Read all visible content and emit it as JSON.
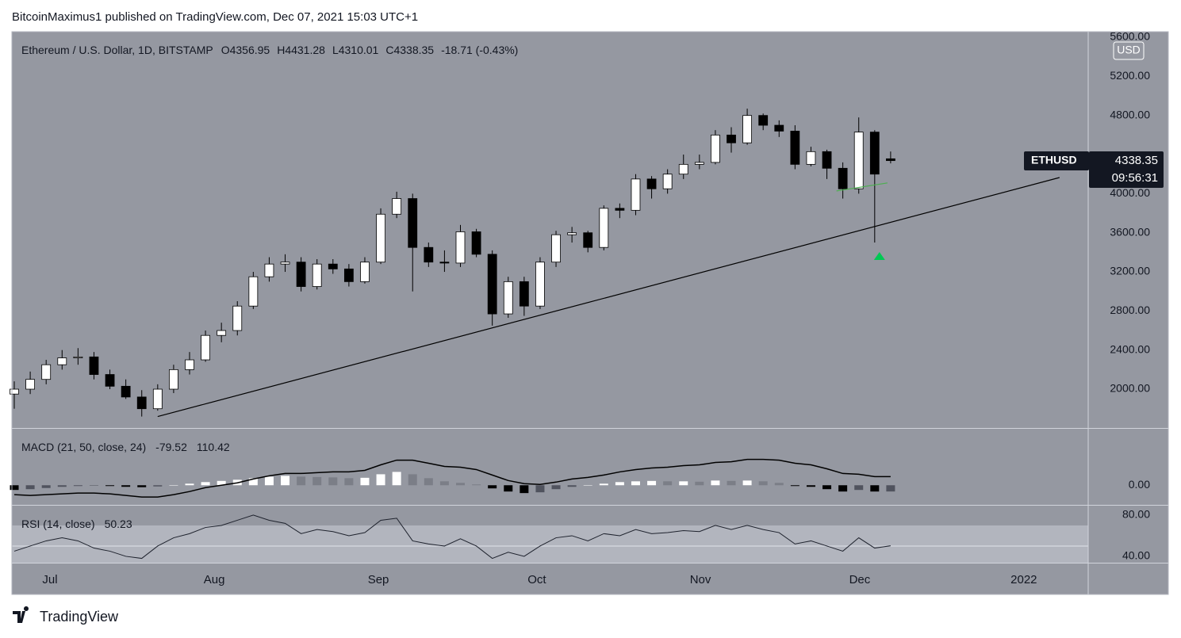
{
  "header": {
    "attribution": "BitcoinMaximus1 published on TradingView.com, Dec 07, 2021 15:03 UTC+1"
  },
  "footer": {
    "brand": "TradingView"
  },
  "chart_data": [
    {
      "type": "candlestick",
      "title": "Ethereum / U.S. Dollar, 1D, BITSTAMP",
      "ohlc_letters": [
        "O",
        "H",
        "L",
        "C"
      ],
      "change": "-18.71 (-0.43%)",
      "currency": "USD",
      "symbol": "ETHUSD",
      "countdown": "09:56:31",
      "colors": {
        "up": "#ffffff",
        "down": "#000000",
        "background": "#9598a1"
      },
      "open": [
        1950,
        2000,
        2100,
        2250,
        2320,
        2330,
        2150,
        2030,
        1920,
        1800,
        2000,
        2200,
        2300,
        2550,
        2600,
        2850,
        3150,
        3280,
        3300,
        3050,
        3280,
        3230,
        3100,
        3300,
        3790,
        3950,
        3450,
        3300,
        3290,
        3610,
        3380,
        2770,
        3100,
        2850,
        3300,
        3580,
        3600,
        3450,
        3850,
        3830,
        4150,
        4050,
        4200,
        4300,
        4320,
        4600,
        4520,
        4800,
        4700,
        4640,
        4300,
        4430,
        4260,
        4050,
        4630,
        4356.95
      ],
      "high": [
        2080,
        2180,
        2300,
        2400,
        2420,
        2380,
        2200,
        2100,
        1990,
        2050,
        2250,
        2380,
        2600,
        2680,
        2900,
        3200,
        3350,
        3380,
        3350,
        3330,
        3330,
        3280,
        3350,
        3850,
        4020,
        4000,
        3500,
        3420,
        3680,
        3640,
        3420,
        3150,
        3150,
        3350,
        3620,
        3660,
        3620,
        3880,
        3900,
        4200,
        4180,
        4250,
        4400,
        4400,
        4650,
        4680,
        4870,
        4820,
        4750,
        4700,
        4480,
        4450,
        4320,
        4780,
        4650,
        4431.28
      ],
      "low": [
        1800,
        1950,
        2050,
        2200,
        2250,
        2100,
        2000,
        1900,
        1720,
        1780,
        1960,
        2150,
        2280,
        2480,
        2550,
        2820,
        3100,
        3200,
        3000,
        3020,
        3180,
        3050,
        3080,
        3280,
        3750,
        3000,
        3250,
        3200,
        3250,
        3350,
        2650,
        2730,
        2750,
        2820,
        3250,
        3500,
        3400,
        3420,
        3750,
        3780,
        3950,
        4000,
        4150,
        4250,
        4300,
        4420,
        4500,
        4650,
        4580,
        4250,
        4280,
        4150,
        3950,
        4000,
        3500,
        4310.01
      ],
      "close": [
        2000,
        2100,
        2250,
        2320,
        2330,
        2150,
        2030,
        1920,
        1800,
        2000,
        2200,
        2300,
        2550,
        2600,
        2850,
        3150,
        3280,
        3300,
        3050,
        3280,
        3230,
        3100,
        3300,
        3790,
        3950,
        3450,
        3300,
        3290,
        3610,
        3380,
        2770,
        3100,
        2850,
        3300,
        3580,
        3600,
        3450,
        3850,
        3830,
        4150,
        4050,
        4200,
        4300,
        4320,
        4600,
        4520,
        4800,
        4700,
        4640,
        4300,
        4430,
        4260,
        4050,
        4630,
        4200,
        4338.35
      ],
      "xlim": [
        -0.15,
        67.4
      ],
      "xticks": [
        {
          "value": 2.24,
          "label": "Jul"
        },
        {
          "value": 12.55,
          "label": "Aug"
        },
        {
          "value": 22.85,
          "label": "Sep"
        },
        {
          "value": 32.8,
          "label": "Oct"
        },
        {
          "value": 43.06,
          "label": "Nov"
        },
        {
          "value": 53.06,
          "label": "Dec"
        },
        {
          "value": 63.36,
          "label": "2022"
        }
      ],
      "ylim": [
        1603,
        5657
      ],
      "yticks": [
        {
          "value": 2000,
          "label": "2000.00"
        },
        {
          "value": 2400,
          "label": "2400.00"
        },
        {
          "value": 2800,
          "label": "2800.00"
        },
        {
          "value": 3200,
          "label": "3200.00"
        },
        {
          "value": 3600,
          "label": "3600.00"
        },
        {
          "value": 4000,
          "label": "4000.00"
        },
        {
          "value": 4800,
          "label": "4800.00"
        },
        {
          "value": 5200,
          "label": "5200.00"
        },
        {
          "value": 5600,
          "label": "5600.00"
        }
      ],
      "annotations": {
        "trendline": {
          "x": [
            9,
            65.6
          ],
          "y": [
            1720,
            4165
          ],
          "color": "#000000"
        },
        "support": {
          "x": [
            51.6,
            54.8
          ],
          "y": [
            4028,
            4110
          ],
          "color": "#4caf50"
        },
        "arrow": {
          "x": 54.3,
          "y": 3362,
          "color": "#00c853"
        }
      }
    },
    {
      "type": "macd",
      "title": "MACD (21, 50, close, 24)",
      "histogram": [
        -60,
        -50,
        -35,
        -20,
        -10,
        -5,
        -10,
        -20,
        -25,
        -15,
        0,
        20,
        40,
        55,
        70,
        90,
        110,
        120,
        110,
        105,
        100,
        90,
        95,
        140,
        170,
        140,
        90,
        50,
        30,
        10,
        -40,
        -80,
        -100,
        -90,
        -50,
        -20,
        0,
        20,
        40,
        50,
        55,
        50,
        50,
        45,
        60,
        55,
        60,
        50,
        30,
        -10,
        -20,
        -50,
        -80,
        -60,
        -80,
        -79.52
      ],
      "macd": [
        -120,
        -130,
        -120,
        -110,
        -100,
        -100,
        -110,
        -130,
        -150,
        -150,
        -120,
        -80,
        -30,
        0,
        30,
        80,
        120,
        150,
        150,
        160,
        170,
        170,
        190,
        260,
        320,
        320,
        280,
        240,
        230,
        200,
        130,
        60,
        20,
        10,
        40,
        80,
        100,
        130,
        170,
        200,
        220,
        230,
        250,
        260,
        290,
        300,
        330,
        330,
        320,
        280,
        260,
        210,
        150,
        140,
        110,
        110.42
      ],
      "color": "#000000",
      "ylim": [
        -250,
        720
      ],
      "yticks": [
        {
          "value": 0,
          "label": "0.00"
        }
      ]
    },
    {
      "type": "line",
      "title": "RSI (14, close)",
      "values": [
        45,
        50,
        55,
        58,
        55,
        48,
        45,
        40,
        38,
        50,
        58,
        62,
        68,
        70,
        75,
        80,
        75,
        72,
        62,
        66,
        64,
        60,
        63,
        75,
        77,
        55,
        52,
        50,
        57,
        50,
        38,
        44,
        40,
        50,
        58,
        60,
        55,
        62,
        60,
        66,
        62,
        63,
        65,
        64,
        70,
        66,
        70,
        66,
        63,
        52,
        55,
        50,
        45,
        58,
        48,
        50.23
      ],
      "color": "#1e222d",
      "band": [
        30,
        70
      ],
      "midline": 50,
      "ylim": [
        33.8,
        89.2
      ],
      "yticks": [
        {
          "value": 40,
          "label": "40.00"
        },
        {
          "value": 80,
          "label": "80.00"
        }
      ]
    }
  ]
}
